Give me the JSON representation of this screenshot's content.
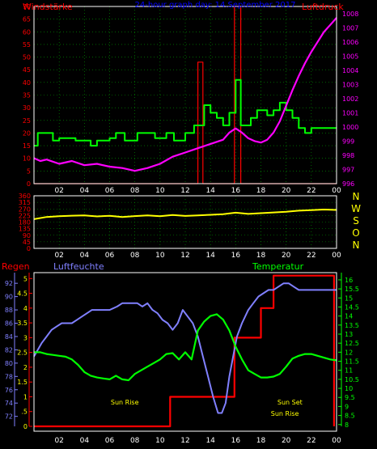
{
  "colors": {
    "background": "#000000",
    "frame": "#ffffff",
    "grid": "#00a000",
    "wind_speed": "#ff0000",
    "wind_gust": "#ff0000",
    "wind_avg": "#00ff00",
    "pressure": "#ff00ff",
    "direction": "#ffff00",
    "direction_labels": "#ffff00",
    "rain": "#ff0000",
    "humidity": "#8080ff",
    "temperature": "#00ff00",
    "title": "#0000ff",
    "sun_labels": "#ffff00"
  },
  "header": {
    "wind_label": "Windstärke",
    "title": "24-hour graph day: 14.September 2017",
    "pressure_label": "Luftdruck"
  },
  "bottom_header": {
    "rain_label": "Regen",
    "humidity_label": "Luftfeuchte",
    "temperature_label": "Temperatur"
  },
  "chart_data": [
    {
      "type": "line",
      "title": "24-hour graph day: 14.September 2017",
      "x_ticks": [
        "02",
        "04",
        "06",
        "08",
        "10",
        "12",
        "14",
        "16",
        "18",
        "20",
        "22",
        "00"
      ],
      "xlim": [
        0,
        24
      ],
      "ylabel_left": "Windstärke",
      "ylim_left": [
        0,
        70
      ],
      "yticks_left": [
        "0",
        "5",
        "10",
        "15",
        "20",
        "25",
        "30",
        "35",
        "40",
        "45",
        "50",
        "55",
        "60",
        "65",
        "70"
      ],
      "ylabel_right": "Luftdruck",
      "ylim_right": [
        996,
        1008.5
      ],
      "yticks_right": [
        "996",
        "997",
        "998",
        "999",
        "1000",
        "1001",
        "1002",
        "1003",
        "1004",
        "1005",
        "1006",
        "1007",
        "1008"
      ],
      "grid": true,
      "series": [
        {
          "role": "wind_gust",
          "axis": "left",
          "x": [
            0,
            13.0,
            13.0,
            13.4,
            13.4,
            15.9,
            15.9,
            16.4,
            16.4,
            24
          ],
          "y": [
            0,
            0,
            48,
            48,
            0,
            0,
            70,
            70,
            0,
            0
          ]
        },
        {
          "role": "wind_avg",
          "axis": "left",
          "x": [
            0,
            0.3,
            0.3,
            1.5,
            1.5,
            2.0,
            2.0,
            3.3,
            3.3,
            4.5,
            4.5,
            5.0,
            5.0,
            6.0,
            6.0,
            6.5,
            6.5,
            7.2,
            7.2,
            8.2,
            8.2,
            9.6,
            9.6,
            10.5,
            10.5,
            11.1,
            11.1,
            12.0,
            12.0,
            12.7,
            12.7,
            13.5,
            13.5,
            14.0,
            14.0,
            14.5,
            14.5,
            15.0,
            15.0,
            15.5,
            15.5,
            16.0,
            16.0,
            16.4,
            16.4,
            17.2,
            17.2,
            17.7,
            17.7,
            18.5,
            18.5,
            19.0,
            19.0,
            19.5,
            19.5,
            20.0,
            20.0,
            20.5,
            20.5,
            21.0,
            21.0,
            21.5,
            21.5,
            22.0,
            22.0,
            24
          ],
          "y": [
            15,
            15,
            20,
            20,
            17,
            17,
            18,
            18,
            17,
            17,
            15,
            15,
            17,
            17,
            18,
            18,
            20,
            20,
            17,
            17,
            20,
            20,
            18,
            18,
            20,
            20,
            17,
            17,
            20,
            20,
            23,
            23,
            31,
            31,
            28,
            28,
            26,
            26,
            23,
            23,
            28,
            28,
            41,
            41,
            23,
            23,
            26,
            26,
            29,
            29,
            27,
            27,
            29,
            29,
            32,
            32,
            29,
            29,
            26,
            26,
            22,
            22,
            20,
            20,
            22,
            22
          ]
        },
        {
          "role": "pressure",
          "axis": "right",
          "x": [
            0,
            0.5,
            1.0,
            2.0,
            3.0,
            4.0,
            5.0,
            6.0,
            7.0,
            8.0,
            9.0,
            10.0,
            11.0,
            12.0,
            13.0,
            14.0,
            15.0,
            15.5,
            16.0,
            16.5,
            17.0,
            17.5,
            18.0,
            18.5,
            19.0,
            19.5,
            20.0,
            20.5,
            21.0,
            21.5,
            22.0,
            22.5,
            23.0,
            23.5,
            24.0
          ],
          "y": [
            997.8,
            997.6,
            997.7,
            997.4,
            997.6,
            997.3,
            997.4,
            997.2,
            997.1,
            996.9,
            997.1,
            997.4,
            997.9,
            998.2,
            998.5,
            998.8,
            999.1,
            999.6,
            999.9,
            999.6,
            999.2,
            999.0,
            998.9,
            999.1,
            999.6,
            1000.4,
            1001.5,
            1002.6,
            1003.6,
            1004.5,
            1005.3,
            1006.0,
            1006.7,
            1007.2,
            1007.7
          ]
        }
      ]
    },
    {
      "type": "line",
      "x_ticks": [
        "02",
        "04",
        "06",
        "08",
        "10",
        "12",
        "14",
        "16",
        "18",
        "20",
        "22",
        "00"
      ],
      "xlim": [
        0,
        24
      ],
      "ylim": [
        0,
        360
      ],
      "yticks": [
        "0",
        "45",
        "90",
        "135",
        "180",
        "225",
        "270",
        "315",
        "360"
      ],
      "direction_labels": [
        "N",
        "W",
        "S",
        "O",
        "N"
      ],
      "grid": true,
      "series": [
        {
          "role": "wind_direction",
          "x": [
            0,
            1,
            2,
            3,
            4,
            5,
            6,
            7,
            8,
            9,
            10,
            11,
            12,
            13,
            14,
            15,
            16,
            17,
            18,
            19,
            20,
            21,
            22,
            23,
            24
          ],
          "y": [
            200,
            215,
            220,
            224,
            226,
            219,
            223,
            215,
            221,
            226,
            220,
            229,
            222,
            226,
            230,
            234,
            244,
            236,
            241,
            246,
            251,
            258,
            262,
            266,
            263
          ]
        }
      ]
    },
    {
      "type": "line",
      "x_ticks": [
        "02",
        "04",
        "06",
        "08",
        "10",
        "12",
        "14",
        "16",
        "18",
        "20",
        "22",
        "00"
      ],
      "xlim": [
        0,
        24
      ],
      "ylabel_rain": "Regen",
      "ylim_rain": [
        0,
        5.2
      ],
      "yticks_rain": [
        "0",
        ".5",
        "1",
        "1.5",
        "2",
        "2.5",
        "3",
        "3.5",
        "4",
        "4.5",
        "5"
      ],
      "ylabel_humidity": "Luftfeuchte",
      "ylim_humidity": [
        70.5,
        93.6
      ],
      "yticks_humidity": [
        "72",
        "74",
        "76",
        "78",
        "80",
        "82",
        "84",
        "86",
        "88",
        "90",
        "92"
      ],
      "ylabel_temperature": "Temperatur",
      "ylim_temperature": [
        7.9,
        16.4
      ],
      "yticks_temperature": [
        "8",
        "8.5",
        "9",
        "9.5",
        "10",
        "10.5",
        "11",
        "11.5",
        "12",
        "12.5",
        "13",
        "13.5",
        "14",
        "14.5",
        "15",
        "15.5",
        "16"
      ],
      "annotations": [
        "Sun Rise",
        "Sun Set",
        "Sun Rise"
      ],
      "grid": false,
      "series": [
        {
          "role": "rain",
          "x": [
            0,
            10.8,
            10.8,
            15.9,
            15.9,
            18.0,
            18.0,
            19.0,
            19.0,
            23.8,
            23.8
          ],
          "y": [
            0,
            0,
            1,
            1,
            3,
            3,
            4,
            4,
            5.1,
            5.1,
            0
          ]
        },
        {
          "role": "humidity",
          "x": [
            0,
            0.6,
            1.0,
            1.4,
            1.8,
            2.2,
            2.6,
            3.0,
            3.4,
            3.8,
            4.2,
            4.6,
            5.0,
            6.0,
            6.6,
            7.0,
            7.4,
            7.8,
            8.2,
            8.6,
            9.0,
            9.4,
            9.8,
            10.2,
            10.6,
            11.0,
            11.4,
            11.8,
            12.2,
            12.6,
            13.0,
            13.4,
            13.8,
            14.2,
            14.6,
            14.9,
            15.2,
            15.5,
            15.8,
            16.1,
            16.5,
            17.0,
            17.4,
            17.8,
            18.2,
            18.6,
            19.0,
            19.4,
            19.8,
            20.2,
            20.6,
            21.0,
            24.0
          ],
          "y": [
            81,
            83,
            84,
            85,
            85.5,
            86,
            86,
            86,
            86.5,
            87,
            87.5,
            88,
            88,
            88,
            88.5,
            89,
            89,
            89,
            89,
            88.5,
            89,
            88,
            87.5,
            86.5,
            86,
            85,
            86,
            88,
            87,
            86,
            84,
            81,
            78,
            75,
            72.5,
            72.5,
            74,
            78,
            81,
            84,
            86,
            88,
            89,
            90,
            90.5,
            91,
            91,
            91.5,
            92,
            92,
            91.5,
            91,
            91
          ]
        },
        {
          "role": "temperature",
          "x": [
            0,
            0.5,
            1.0,
            1.5,
            2.0,
            2.5,
            3.0,
            3.5,
            4.0,
            4.5,
            5.0,
            5.5,
            6.0,
            6.5,
            7.0,
            7.5,
            8.0,
            8.5,
            9.0,
            9.5,
            10.0,
            10.5,
            11.0,
            11.5,
            12.0,
            12.5,
            13.0,
            13.5,
            14.0,
            14.5,
            15.0,
            15.5,
            16.0,
            16.5,
            17.0,
            17.5,
            18.0,
            18.5,
            19.0,
            19.5,
            20.0,
            20.5,
            21.0,
            21.5,
            22.0,
            22.5,
            23.0,
            23.5,
            24.0
          ],
          "y": [
            12.0,
            12.0,
            11.9,
            11.85,
            11.8,
            11.75,
            11.6,
            11.3,
            10.9,
            10.7,
            10.6,
            10.55,
            10.5,
            10.7,
            10.5,
            10.45,
            10.8,
            11.0,
            11.2,
            11.4,
            11.6,
            11.9,
            11.95,
            11.6,
            12.0,
            11.6,
            13.2,
            13.7,
            14.0,
            14.1,
            13.8,
            13.2,
            12.3,
            11.6,
            11.0,
            10.8,
            10.6,
            10.6,
            10.65,
            10.8,
            11.2,
            11.65,
            11.8,
            11.9,
            11.9,
            11.8,
            11.7,
            11.6,
            11.55
          ]
        }
      ]
    }
  ]
}
